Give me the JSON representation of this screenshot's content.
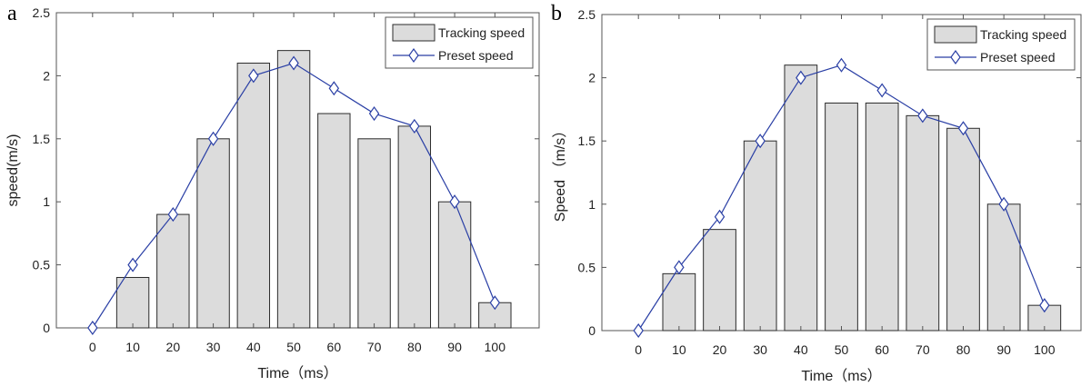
{
  "chart_data": [
    {
      "panel_label": "a",
      "type": "bar",
      "xlabel": "Time（ms）",
      "ylabel": "speed(m/s)",
      "ylim": [
        0,
        2.5
      ],
      "yticks": [
        "0",
        "0.5",
        "1",
        "1.5",
        "2",
        "2.5"
      ],
      "xticks": [
        "0",
        "10",
        "20",
        "30",
        "40",
        "50",
        "60",
        "70",
        "80",
        "90",
        "100"
      ],
      "x": [
        0,
        10,
        20,
        30,
        40,
        50,
        60,
        70,
        80,
        90,
        100
      ],
      "grid": false,
      "legend_position": "top-right",
      "series": [
        {
          "name": "Tracking speed",
          "type": "bar",
          "values": [
            0,
            0.4,
            0.9,
            1.5,
            2.1,
            2.2,
            1.7,
            1.5,
            1.6,
            1.0,
            0.2
          ]
        },
        {
          "name": "Preset speed",
          "type": "line",
          "marker": "diamond",
          "values": [
            0,
            0.5,
            0.9,
            1.5,
            2.0,
            2.1,
            1.9,
            1.7,
            1.6,
            1.0,
            0.2
          ]
        }
      ]
    },
    {
      "panel_label": "b",
      "type": "bar",
      "xlabel": "Time（ms）",
      "ylabel": "Speed （m/s）",
      "ylim": [
        0,
        2.5
      ],
      "yticks": [
        "0",
        "0.5",
        "1",
        "1.5",
        "2",
        "2.5"
      ],
      "xticks": [
        "0",
        "10",
        "20",
        "30",
        "40",
        "50",
        "60",
        "70",
        "80",
        "90",
        "100"
      ],
      "x": [
        0,
        10,
        20,
        30,
        40,
        50,
        60,
        70,
        80,
        90,
        100
      ],
      "grid": false,
      "legend_position": "top-right",
      "series": [
        {
          "name": "Tracking speed",
          "type": "bar",
          "values": [
            0,
            0.45,
            0.8,
            1.5,
            2.1,
            1.8,
            1.8,
            1.7,
            1.6,
            1.0,
            0.2
          ]
        },
        {
          "name": "Preset speed",
          "type": "line",
          "marker": "diamond",
          "values": [
            0,
            0.5,
            0.9,
            1.5,
            2.0,
            2.1,
            1.9,
            1.7,
            1.6,
            1.0,
            0.2
          ]
        }
      ]
    }
  ],
  "colors": {
    "bar_fill": "#dcdcdc",
    "bar_stroke": "#2b2b2b",
    "line": "#2a3fa5",
    "axis": "#555555",
    "text": "#222222"
  }
}
